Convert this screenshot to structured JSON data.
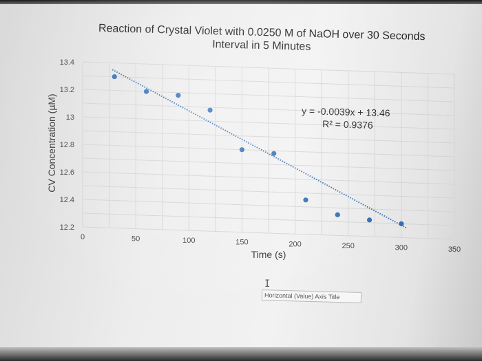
{
  "chart_data": {
    "type": "scatter",
    "title": "Reaction of Crystal Violet with 0.0250 M of NaOH over 30 Seconds Interval in 5 Minutes",
    "title_lines": [
      "Reaction of Crystal Violet with 0.0250 M of NaOH over 30 Seconds",
      "Interval in 5 Minutes"
    ],
    "xlabel": "Time (s)",
    "ylabel": "CV Concentration (µM)",
    "xlim": [
      0,
      350
    ],
    "ylim": [
      12.2,
      13.4
    ],
    "x_ticks": [
      "0",
      "50",
      "100",
      "150",
      "200",
      "250",
      "300",
      "350"
    ],
    "y_ticks": [
      "12.2",
      "12.4",
      "12.6",
      "12.8",
      "13",
      "13.2",
      "13.4"
    ],
    "grid": true,
    "points": [
      {
        "x": 30,
        "y": 13.3
      },
      {
        "x": 60,
        "y": 13.2
      },
      {
        "x": 90,
        "y": 13.18
      },
      {
        "x": 120,
        "y": 13.08
      },
      {
        "x": 150,
        "y": 12.8
      },
      {
        "x": 180,
        "y": 12.78
      },
      {
        "x": 210,
        "y": 12.45
      },
      {
        "x": 240,
        "y": 12.35
      },
      {
        "x": 270,
        "y": 12.32
      },
      {
        "x": 300,
        "y": 12.3
      }
    ],
    "trendline": {
      "slope": -0.0039,
      "intercept": 13.46,
      "style": "dotted"
    },
    "annotations": [
      "y = -0.0039x + 13.46",
      "R² = 0.9376"
    ],
    "colors": {
      "points": "#2f6db5",
      "trendline": "#2f6db5",
      "grid": "#d4d4d4"
    }
  },
  "tooltip": {
    "text": "Horizontal (Value) Axis Title"
  }
}
